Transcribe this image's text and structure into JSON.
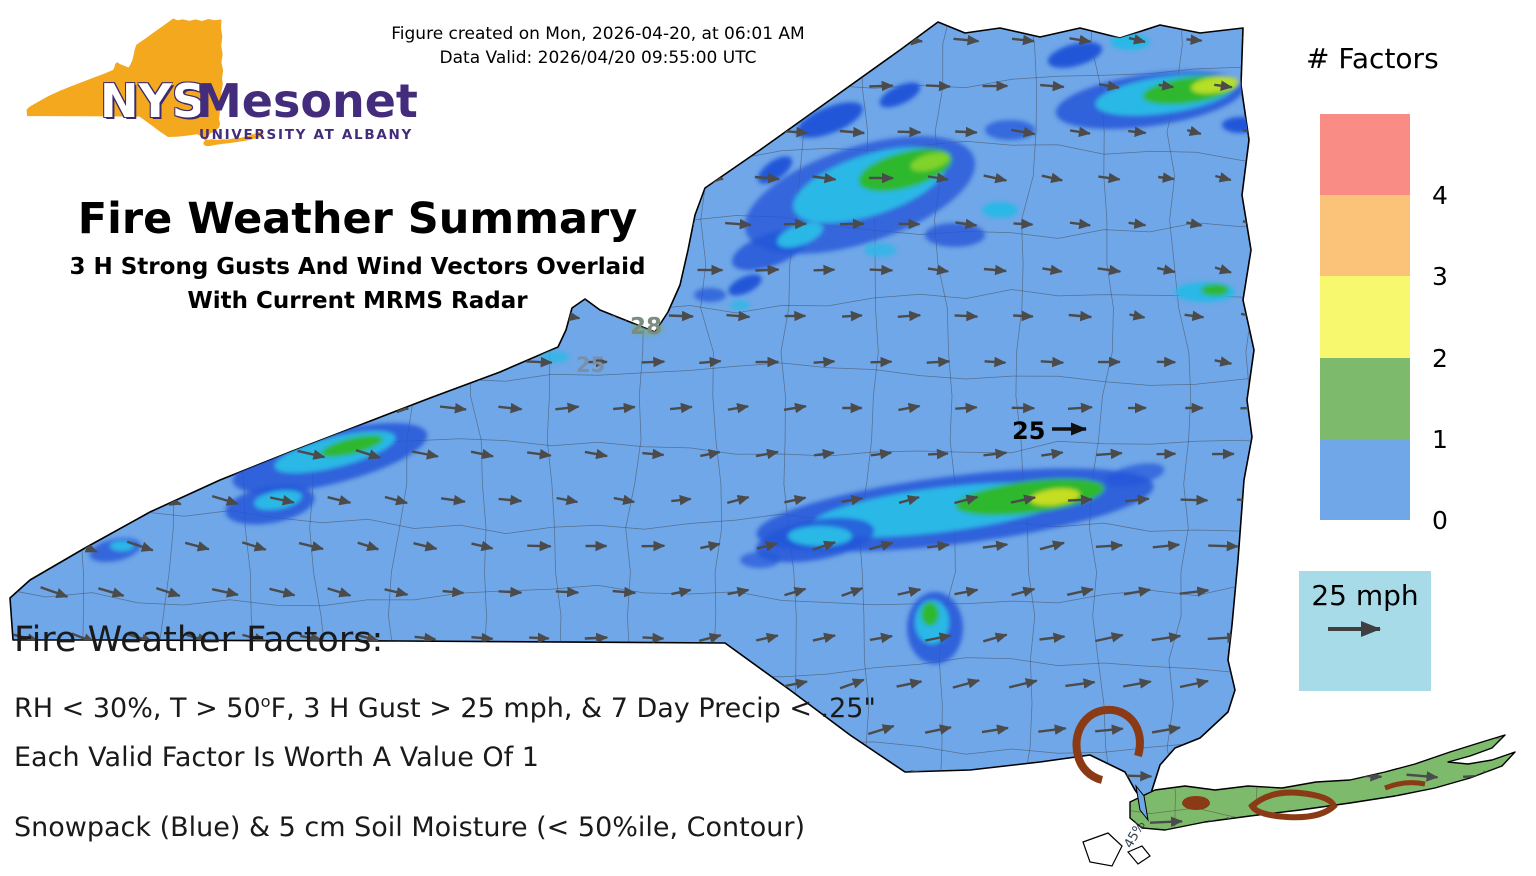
{
  "meta": {
    "created": "Figure created on Mon, 2026-04-20, at 06:01 AM",
    "valid": "Data Valid: 2026/04/20 09:55:00 UTC"
  },
  "logo": {
    "acronym": "NYS",
    "name": "Mesonet",
    "affiliation": "UNIVERSITY AT ALBANY",
    "state_color": "#f3a81d",
    "brand_purple": "#432c7c"
  },
  "title": "Fire Weather Summary",
  "subtitle_line1": "3 H Strong Gusts And Wind Vectors Overlaid",
  "subtitle_line2": "With Current MRMS Radar",
  "factors_legend": {
    "title": "# Factors",
    "levels": [
      {
        "label": "4",
        "color": "#f98c84"
      },
      {
        "label": "3",
        "color": "#fbc27a"
      },
      {
        "label": "2",
        "color": "#f8f86e"
      },
      {
        "label": "1",
        "color": "#7eba6b"
      },
      {
        "label": "0",
        "color": "#70a7e8"
      }
    ]
  },
  "wind_scale": {
    "label": "25 mph",
    "box_color": "#a8dbe8"
  },
  "map": {
    "state_fill": "#70a7e8",
    "long_island_fill": "#7eba6b",
    "soil_contour_color": "#8a3a14",
    "gust_labels": [
      {
        "text": "28"
      },
      {
        "text": "25"
      },
      {
        "text": "25"
      }
    ],
    "soil_contour_label": "45%"
  },
  "footnotes": {
    "heading": "Fire Weather Factors:",
    "criteria_pre": "RH < 30%, T > 50",
    "criteria_sup": "o",
    "criteria_post": "F, 3 H Gust > 25 mph, & 7 Day Precip < .25\"",
    "value_note": "Each Valid Factor Is Worth A Value Of 1",
    "snowpack_note": "Snowpack (Blue) & 5 cm Soil Moisture (< 50%ile, Contour)"
  }
}
